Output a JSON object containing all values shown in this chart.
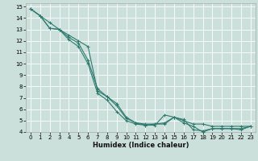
{
  "xlabel": "Humidex (Indice chaleur)",
  "background_color": "#cce0db",
  "grid_color": "#ffffff",
  "line_color": "#2d7a6e",
  "xlim": [
    -0.5,
    23.5
  ],
  "ylim": [
    4,
    15.3
  ],
  "xticks": [
    0,
    1,
    2,
    3,
    4,
    5,
    6,
    7,
    8,
    9,
    10,
    11,
    12,
    13,
    14,
    15,
    16,
    17,
    18,
    19,
    20,
    21,
    22,
    23
  ],
  "yticks": [
    4,
    5,
    6,
    7,
    8,
    9,
    10,
    11,
    12,
    13,
    14,
    15
  ],
  "line1_x": [
    0,
    1,
    2,
    3,
    4,
    5,
    6,
    7,
    8,
    9,
    10,
    11,
    12,
    13,
    14,
    15,
    16,
    17,
    18,
    19,
    20,
    21,
    22,
    23
  ],
  "line1_y": [
    14.8,
    14.2,
    13.6,
    13.0,
    12.5,
    12.0,
    11.5,
    7.6,
    7.1,
    6.5,
    5.3,
    4.8,
    4.7,
    4.7,
    4.7,
    5.3,
    5.0,
    4.7,
    4.7,
    4.5,
    4.5,
    4.5,
    4.5,
    4.5
  ],
  "line2_x": [
    0,
    1,
    2,
    3,
    4,
    5,
    6,
    7,
    8,
    9,
    10,
    11,
    12,
    13,
    14,
    15,
    16,
    17,
    18,
    19,
    20,
    21,
    22,
    23
  ],
  "line2_y": [
    14.8,
    14.2,
    13.1,
    13.0,
    12.3,
    11.8,
    10.3,
    7.8,
    7.1,
    6.3,
    5.2,
    4.8,
    4.6,
    4.7,
    4.8,
    5.3,
    5.1,
    4.2,
    4.1,
    4.3,
    4.3,
    4.3,
    4.2,
    4.5
  ],
  "line3_x": [
    0,
    1,
    2,
    3,
    4,
    5,
    6,
    7,
    8,
    9,
    10,
    11,
    12,
    13,
    14,
    15,
    16,
    17,
    18,
    19,
    20,
    21,
    22,
    23
  ],
  "line3_y": [
    14.8,
    14.2,
    13.1,
    13.0,
    12.1,
    11.5,
    10.0,
    7.4,
    6.8,
    5.8,
    5.0,
    4.7,
    4.6,
    4.6,
    5.5,
    5.3,
    4.8,
    4.5,
    4.0,
    4.3,
    4.3,
    4.3,
    4.3,
    4.5
  ],
  "marker": "+",
  "markersize": 3,
  "linewidth": 0.8,
  "fontsize_label": 6,
  "fontsize_tick": 5
}
